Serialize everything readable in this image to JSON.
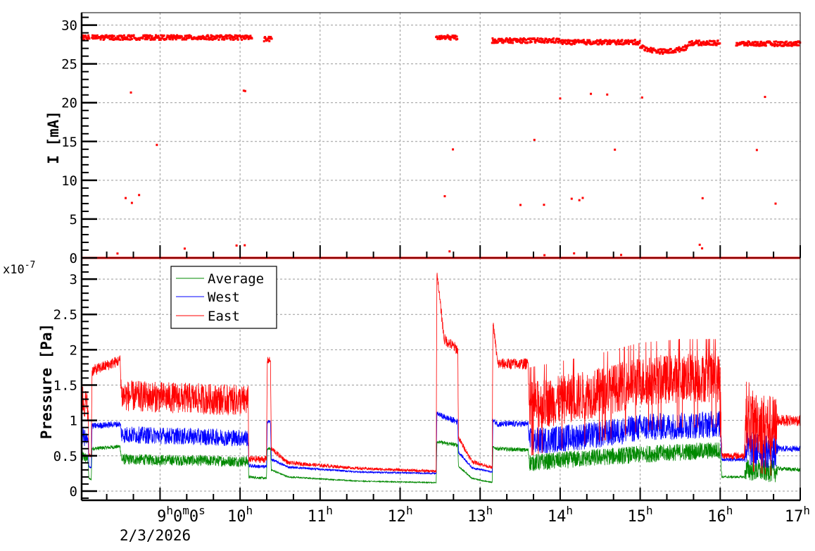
{
  "chart_data": [
    {
      "type": "scatter",
      "title": "",
      "ylabel": "I [mA]",
      "xlabel": "",
      "xlim_hours": [
        8.02,
        17.0
      ],
      "ylim": [
        0,
        31.6
      ],
      "yticks": [
        "0",
        "5",
        "10",
        "15",
        "20",
        "25",
        "30"
      ],
      "grid": true,
      "series": [
        {
          "name": "Current",
          "color": "#ff0000",
          "segments": [
            {
              "t0": 8.02,
              "t1": 8.12,
              "level": 28.4
            },
            {
              "t0": 8.15,
              "t1": 10.15,
              "level": 28.4
            },
            {
              "t0": 10.3,
              "t1": 10.4,
              "level": 28.2
            },
            {
              "t0": 12.45,
              "t1": 12.72,
              "level": 28.4
            },
            {
              "t0": 13.15,
              "t1": 14.0,
              "level": 28.0
            },
            {
              "t0": 14.0,
              "t1": 15.0,
              "level": 27.8
            },
            {
              "t0": 15.0,
              "t1": 15.6,
              "level": 27.2
            },
            {
              "t0": 15.6,
              "t1": 16.0,
              "level": 27.7
            },
            {
              "t0": 16.2,
              "t1": 17.0,
              "level": 27.6
            }
          ],
          "baseline": 0,
          "outlier_levels": [
            21,
            14.6,
            7.5,
            1.0
          ]
        }
      ]
    },
    {
      "type": "line",
      "title": "",
      "ylabel": "Pressure [Pa]",
      "yscale_label": "x10-7",
      "xlabel": "",
      "xlim_hours": [
        8.02,
        17.0
      ],
      "ylim": [
        -0.13,
        3.3
      ],
      "yticks": [
        "0",
        "0.5",
        "1",
        "1.5",
        "2",
        "2.5",
        "3"
      ],
      "xticks": [
        {
          "h": 9,
          "label": "9",
          "sup": "h",
          "extra": "0",
          "sup2": "m",
          "extra2": "0",
          "sup3": "s"
        },
        {
          "h": 10,
          "label": "10",
          "sup": "h"
        },
        {
          "h": 11,
          "label": "11",
          "sup": "h"
        },
        {
          "h": 12,
          "label": "12",
          "sup": "h"
        },
        {
          "h": 13,
          "label": "13",
          "sup": "h"
        },
        {
          "h": 14,
          "label": "14",
          "sup": "h"
        },
        {
          "h": 15,
          "label": "15",
          "sup": "h"
        },
        {
          "h": 16,
          "label": "16",
          "sup": "h"
        },
        {
          "h": 17,
          "label": "17",
          "sup": "h"
        }
      ],
      "date_label": "2/3/2026",
      "grid": true,
      "legend": {
        "placement": "top-left",
        "entries": [
          "Average",
          "West",
          "East"
        ]
      },
      "breakpoints_columns": [
        "hour",
        "east",
        "west",
        "average",
        "noise"
      ],
      "breakpoints": [
        [
          8.02,
          1.3,
          0.8,
          0.5,
          0.25
        ],
        [
          8.1,
          1.2,
          0.7,
          0.45,
          0.2
        ],
        [
          8.11,
          0.5,
          0.35,
          0.18,
          0.03
        ],
        [
          8.14,
          0.5,
          0.33,
          0.16,
          0.03
        ],
        [
          8.15,
          1.7,
          0.92,
          0.6,
          0.08
        ],
        [
          8.5,
          1.85,
          0.95,
          0.63,
          0.08
        ],
        [
          8.52,
          1.35,
          0.8,
          0.45,
          0.22
        ],
        [
          10.1,
          1.28,
          0.75,
          0.42,
          0.22
        ],
        [
          10.11,
          0.45,
          0.36,
          0.2,
          0.05
        ],
        [
          10.33,
          0.45,
          0.34,
          0.18,
          0.05
        ],
        [
          10.34,
          1.85,
          0.98,
          0.6,
          0.05
        ],
        [
          10.38,
          1.85,
          0.98,
          0.6,
          0.05
        ],
        [
          10.39,
          0.6,
          0.45,
          0.3,
          0.04
        ],
        [
          10.6,
          0.4,
          0.34,
          0.2,
          0.03
        ],
        [
          11.5,
          0.32,
          0.27,
          0.14,
          0.02
        ],
        [
          12.45,
          0.28,
          0.25,
          0.12,
          0.02
        ],
        [
          12.46,
          3.1,
          1.1,
          0.7,
          0.05
        ],
        [
          12.55,
          2.15,
          1.05,
          0.68,
          0.08
        ],
        [
          12.72,
          2.0,
          0.98,
          0.65,
          0.08
        ],
        [
          12.73,
          0.75,
          0.55,
          0.35,
          0.04
        ],
        [
          12.9,
          0.42,
          0.33,
          0.18,
          0.03
        ],
        [
          13.15,
          0.33,
          0.27,
          0.12,
          0.02
        ],
        [
          13.16,
          2.4,
          1.0,
          0.62,
          0.05
        ],
        [
          13.22,
          1.8,
          0.95,
          0.6,
          0.08
        ],
        [
          13.6,
          1.8,
          0.95,
          0.58,
          0.08
        ],
        [
          13.62,
          1.2,
          0.7,
          0.4,
          0.35
        ],
        [
          14.5,
          1.4,
          0.8,
          0.48,
          0.35
        ],
        [
          15.0,
          1.55,
          0.9,
          0.52,
          0.35
        ],
        [
          15.5,
          1.6,
          0.92,
          0.55,
          0.35
        ],
        [
          16.0,
          1.6,
          0.95,
          0.58,
          0.35
        ],
        [
          16.02,
          0.5,
          0.45,
          0.2,
          0.05
        ],
        [
          16.3,
          0.5,
          0.45,
          0.2,
          0.05
        ],
        [
          16.32,
          1.0,
          0.6,
          0.3,
          0.45
        ],
        [
          16.7,
          0.9,
          0.55,
          0.28,
          0.45
        ],
        [
          16.72,
          1.0,
          0.6,
          0.32,
          0.08
        ],
        [
          17.0,
          1.0,
          0.6,
          0.3,
          0.08
        ]
      ],
      "series": [
        {
          "name": "Average",
          "color": "#008800"
        },
        {
          "name": "West",
          "color": "#0000ff"
        },
        {
          "name": "East",
          "color": "#ff0000"
        }
      ]
    }
  ]
}
